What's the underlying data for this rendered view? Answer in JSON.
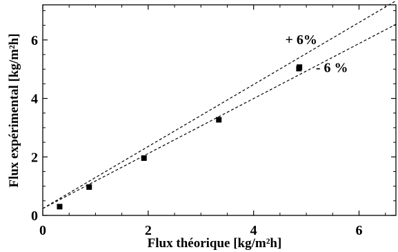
{
  "chart_data": {
    "type": "scatter",
    "xlabel": "Flux théorique [kg/m²h]",
    "ylabel": "Flux expérimental [kg/m²h]",
    "xlim": [
      0,
      6.7
    ],
    "ylim": [
      0,
      7.2
    ],
    "xticks": [
      {
        "value": 0,
        "label": "0"
      },
      {
        "value": 2,
        "label": "2"
      },
      {
        "value": 4,
        "label": "4"
      },
      {
        "value": 6,
        "label": "6"
      }
    ],
    "yticks": [
      {
        "value": 0,
        "label": "0"
      },
      {
        "value": 2,
        "label": "2"
      },
      {
        "value": 4,
        "label": "4"
      },
      {
        "value": 6,
        "label": "6"
      }
    ],
    "points": [
      {
        "x": 0.32,
        "y": 0.3
      },
      {
        "x": 0.88,
        "y": 0.97
      },
      {
        "x": 1.92,
        "y": 1.96
      },
      {
        "x": 3.34,
        "y": 3.27
      },
      {
        "x": 4.86,
        "y": 5.02
      },
      {
        "x": 4.87,
        "y": 5.07
      }
    ],
    "lines": [
      {
        "label": "+ 6%",
        "slope": 1.06,
        "style": "dashed",
        "label_at": {
          "x": 4.6,
          "y": 5.85
        }
      },
      {
        "label": "- 6 %",
        "slope": 0.94,
        "style": "dashed",
        "label_at": {
          "x": 5.18,
          "y": 4.9
        }
      }
    ],
    "grid": false,
    "legend": "none"
  }
}
